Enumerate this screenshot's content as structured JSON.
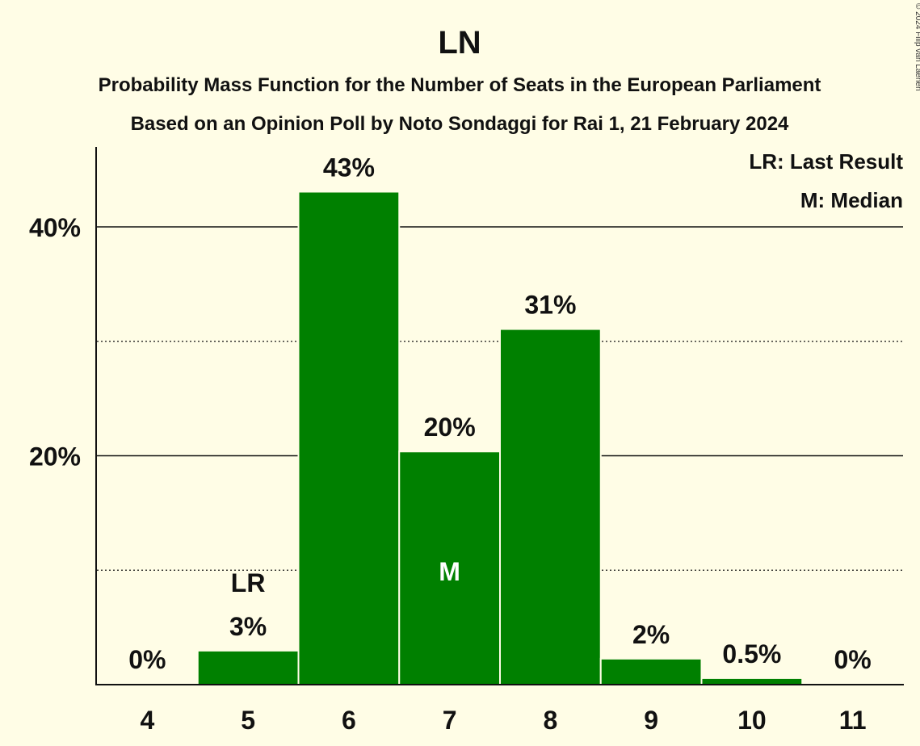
{
  "chart_data": {
    "type": "bar",
    "title": "LN",
    "subtitle": "Probability Mass Function for the Number of Seats in the European Parliament",
    "subtitle2": "Based on an Opinion Poll by Noto Sondaggi for Rai 1, 21 February 2024",
    "copyright": "© 2024 Filip van Laenen",
    "legend": {
      "lr": "LR: Last Result",
      "m": "M: Median",
      "placement": "top-right"
    },
    "categories": [
      "4",
      "5",
      "6",
      "7",
      "8",
      "9",
      "10",
      "11"
    ],
    "values": [
      0,
      2.9,
      43,
      20.3,
      31,
      2.2,
      0.5,
      0
    ],
    "value_labels": [
      "0%",
      "3%",
      "43%",
      "20%",
      "31%",
      "2%",
      "0.5%",
      "0%"
    ],
    "ylim": [
      0,
      47
    ],
    "yticks": [
      {
        "value": 20,
        "label": "20%"
      },
      {
        "value": 40,
        "label": "40%"
      }
    ],
    "minor_gridlines": [
      10,
      30
    ],
    "last_result": {
      "category": "5",
      "label": "LR"
    },
    "median": {
      "category": "7",
      "label": "M"
    },
    "bar_color": "#008000",
    "background": "#FFFDE6"
  }
}
